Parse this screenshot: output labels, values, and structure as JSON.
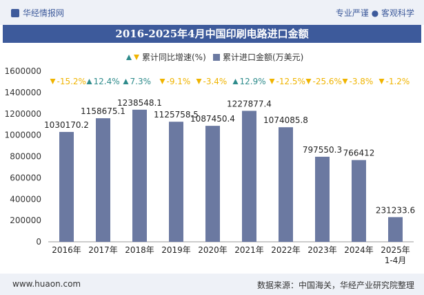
{
  "header": {
    "logo_text": "华经情报网",
    "tagline": "专业严谨 ● 客观科学"
  },
  "title": "2016-2025年4月中国印刷电路进口金额",
  "footer": {
    "site": "www.huaon.com",
    "source": "数据来源：中国海关，华经产业研究院整理"
  },
  "colors": {
    "bar": "#6b79a1",
    "up": "#2e8b8b",
    "down": "#f0b400",
    "header_band": "#3d5a9b"
  },
  "chart_data": {
    "type": "bar",
    "categories": [
      "2016年",
      "2017年",
      "2018年",
      "2019年",
      "2020年",
      "2021年",
      "2022年",
      "2023年",
      "2024年",
      "2025年\n1-4月"
    ],
    "series": [
      {
        "name": "累计进口金额(万美元)",
        "values": [
          1030170.2,
          1158675.1,
          1238548.1,
          1125758.5,
          1087450.4,
          1227877.4,
          1074085.8,
          797550.3,
          766412,
          231233.6
        ],
        "labels": [
          "1030170.2",
          "1158675.1",
          "1238548.1",
          "1125758.5",
          "1087450.4",
          "1227877.4",
          "1074085.8",
          "797550.3",
          "766412",
          "231233.6"
        ]
      },
      {
        "name": "累计同比增速(%)",
        "values": [
          -15.2,
          12.4,
          7.3,
          -9.1,
          -3.4,
          12.9,
          -12.5,
          -25.6,
          -3.8,
          -1.2
        ],
        "labels": [
          "-15.2%",
          "12.4%",
          "7.3%",
          "-9.1%",
          "-3.4%",
          "12.9%",
          "-12.5%",
          "-25.6%",
          "-3.8%",
          "-1.2%"
        ]
      }
    ],
    "ylim": [
      0,
      1600000
    ],
    "yticks": [
      "0",
      "200000",
      "400000",
      "600000",
      "800000",
      "1000000",
      "1200000",
      "1400000",
      "1600000"
    ],
    "legend_position": "top-center",
    "grid": false
  }
}
